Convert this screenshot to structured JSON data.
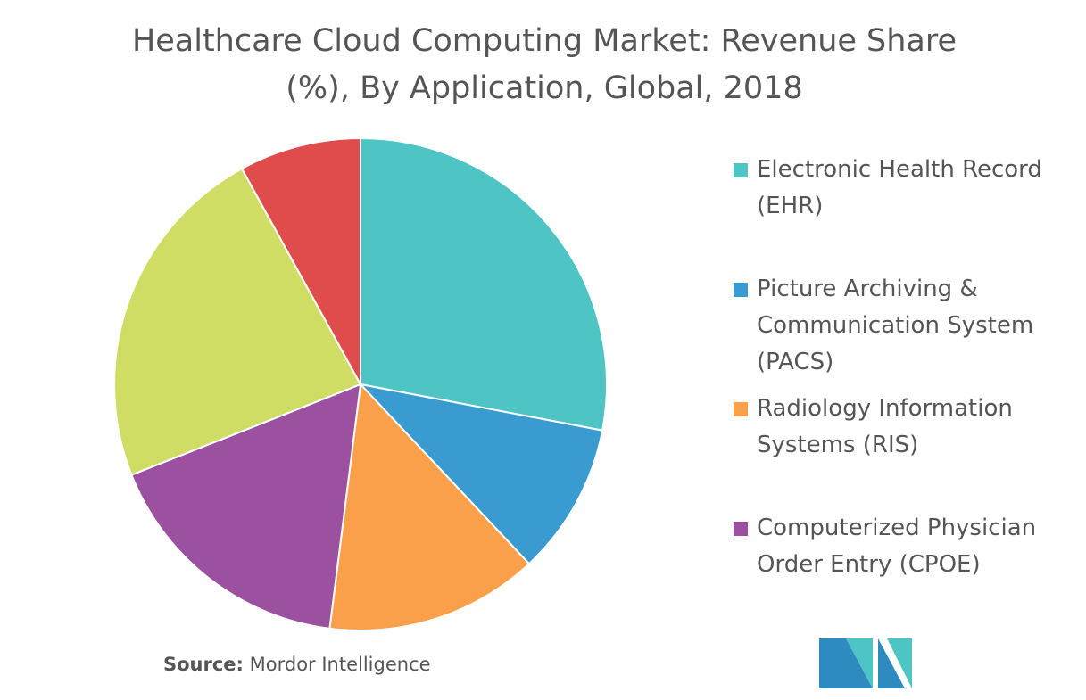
{
  "chart_data": {
    "type": "pie",
    "title": "Healthcare Cloud Computing Market: Revenue Share (%), By Application, Global, 2018",
    "categories": [
      "Electronic Health Record (EHR)",
      "Picture Archiving & Communication System (PACS)",
      "Radiology Information Systems (RIS)",
      "Computerized Physician Order Entry (CPOE)",
      null,
      null
    ],
    "values": [
      28,
      10,
      14,
      17,
      23,
      8
    ],
    "colors": [
      "#4fc4c5",
      "#3a9bd0",
      "#fba04a",
      "#9b51a0",
      "#cfdd64",
      "#e04b4c"
    ],
    "source": {
      "label": "Source:",
      "text": "Mordor Intelligence"
    }
  }
}
